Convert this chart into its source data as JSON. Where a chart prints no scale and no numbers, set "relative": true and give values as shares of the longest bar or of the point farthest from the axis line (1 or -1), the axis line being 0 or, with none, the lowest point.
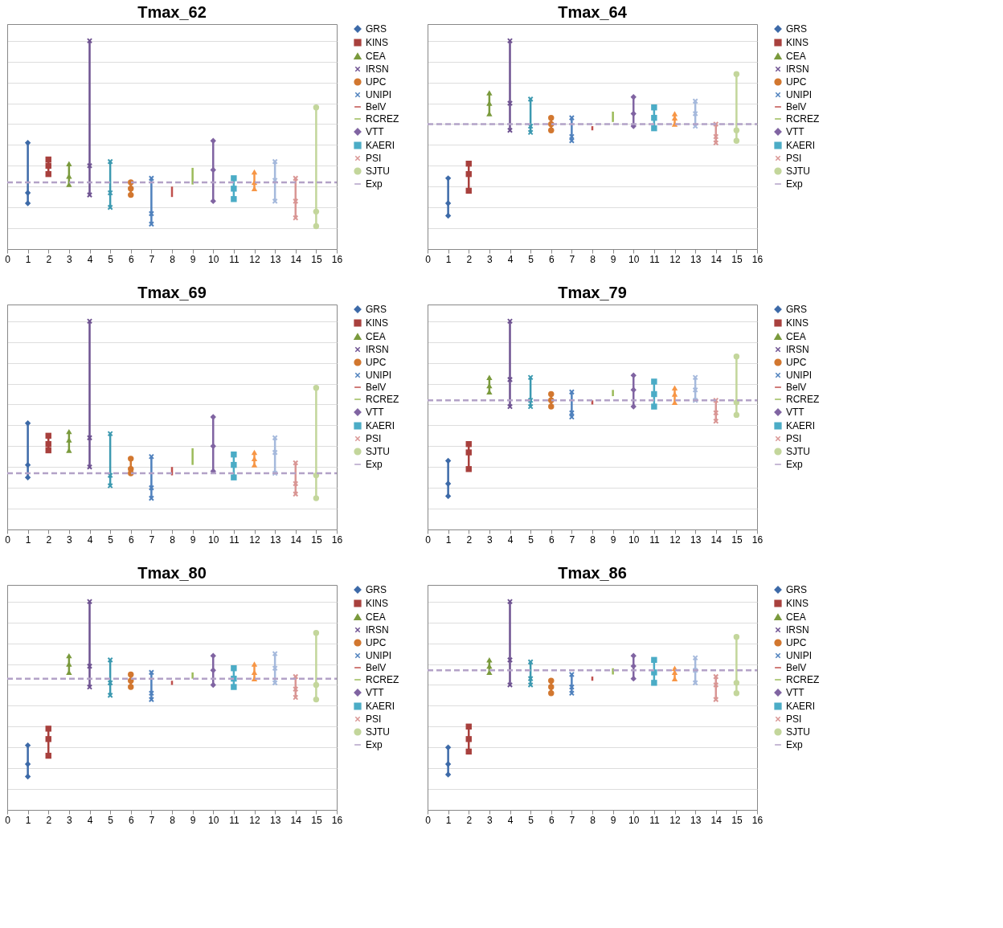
{
  "chart_data": [
    {
      "type": "line",
      "title": "Tmax_62",
      "relative": true,
      "xlim": [
        0,
        16
      ],
      "xticks": [
        0,
        1,
        2,
        3,
        4,
        5,
        6,
        7,
        8,
        9,
        10,
        11,
        12,
        13,
        14,
        15,
        16
      ],
      "grid": "y",
      "legend": "right",
      "series": [
        {
          "name": "GRS",
          "color": "#3d6aa8",
          "marker": "diamond",
          "x": [
            1,
            1,
            1
          ],
          "values": [
            0.51,
            0.27,
            0.22
          ]
        },
        {
          "name": "KINS",
          "color": "#a8403d",
          "marker": "square",
          "x": [
            2,
            2,
            2
          ],
          "values": [
            0.43,
            0.4,
            0.36
          ]
        },
        {
          "name": "CEA",
          "color": "#7a9a3c",
          "marker": "triangle",
          "x": [
            3,
            3,
            3
          ],
          "values": [
            0.41,
            0.35,
            0.31
          ]
        },
        {
          "name": "IRSN",
          "color": "#6e5291",
          "marker": "cross",
          "x": [
            4,
            4,
            4
          ],
          "values": [
            1,
            0.4,
            0.26
          ]
        },
        {
          "color": "#3c99b0",
          "marker": "cross",
          "x": [
            5,
            5,
            5
          ],
          "values": [
            0.42,
            0.27,
            0.2
          ]
        },
        {
          "name": "UPC",
          "color": "#d2772f",
          "marker": "circle",
          "x": [
            6,
            6,
            6
          ],
          "values": [
            0.32,
            0.29,
            0.26
          ]
        },
        {
          "name": "UNIPI",
          "color": "#4f81bd",
          "marker": "cross",
          "x": [
            7,
            7,
            7
          ],
          "values": [
            0.34,
            0.17,
            0.12
          ]
        },
        {
          "name": "BelV",
          "color": "#c0504d",
          "marker": "none",
          "x": [
            8,
            8,
            8
          ],
          "values": [
            0.3,
            0.27,
            0.25
          ]
        },
        {
          "name": "RCREZ",
          "color": "#9bbb59",
          "marker": "none",
          "x": [
            9,
            9,
            9
          ],
          "values": [
            0.39,
            0.35,
            0.31
          ]
        },
        {
          "name": "VTT",
          "color": "#8064a2",
          "marker": "diamond",
          "x": [
            10,
            10,
            10
          ],
          "values": [
            0.52,
            0.38,
            0.23
          ]
        },
        {
          "name": "KAERI",
          "color": "#4bacc6",
          "marker": "square",
          "x": [
            11,
            11,
            11
          ],
          "values": [
            0.34,
            0.29,
            0.24
          ]
        },
        {
          "color": "#f79646",
          "marker": "triangle",
          "x": [
            12,
            12,
            12
          ],
          "values": [
            0.37,
            0.32,
            0.29
          ]
        },
        {
          "color": "#a5b9dc",
          "marker": "cross",
          "x": [
            13,
            13,
            13
          ],
          "values": [
            0.42,
            0.33,
            0.23
          ]
        },
        {
          "name": "PSI",
          "color": "#d99694",
          "marker": "cross",
          "x": [
            14,
            14,
            14
          ],
          "values": [
            0.34,
            0.23,
            0.15
          ]
        },
        {
          "name": "SJTU",
          "color": "#c3d69b",
          "marker": "circle",
          "x": [
            15,
            15,
            15
          ],
          "values": [
            0.68,
            0.18,
            0.11
          ]
        },
        {
          "name": "Exp",
          "color": "#b3a2c7",
          "marker": "none",
          "line_style": "dashed",
          "x": [
            0,
            16
          ],
          "values": [
            0.32,
            0.32
          ]
        }
      ]
    },
    {
      "type": "line",
      "title": "Tmax_64",
      "relative": true,
      "xlim": [
        0,
        16
      ],
      "xticks": [
        0,
        1,
        2,
        3,
        4,
        5,
        6,
        7,
        8,
        9,
        10,
        11,
        12,
        13,
        14,
        15,
        16
      ],
      "grid": "y",
      "legend": "right",
      "series": [
        {
          "name": "GRS",
          "color": "#3d6aa8",
          "marker": "diamond",
          "x": [
            1,
            1,
            1
          ],
          "values": [
            0.34,
            0.22,
            0.16
          ]
        },
        {
          "name": "KINS",
          "color": "#a8403d",
          "marker": "square",
          "x": [
            2,
            2,
            2
          ],
          "values": [
            0.41,
            0.36,
            0.28
          ]
        },
        {
          "name": "CEA",
          "color": "#7a9a3c",
          "marker": "triangle",
          "x": [
            3,
            3,
            3
          ],
          "values": [
            0.75,
            0.7,
            0.65
          ]
        },
        {
          "name": "IRSN",
          "color": "#6e5291",
          "marker": "cross",
          "x": [
            4,
            4,
            4
          ],
          "values": [
            1,
            0.7,
            0.57
          ]
        },
        {
          "color": "#3c99b0",
          "marker": "cross",
          "x": [
            5,
            5,
            5
          ],
          "values": [
            0.72,
            0.59,
            0.56
          ]
        },
        {
          "name": "UPC",
          "color": "#d2772f",
          "marker": "circle",
          "x": [
            6,
            6,
            6
          ],
          "values": [
            0.63,
            0.6,
            0.57
          ]
        },
        {
          "name": "UNIPI",
          "color": "#4f81bd",
          "marker": "cross",
          "x": [
            7,
            7,
            7
          ],
          "values": [
            0.63,
            0.54,
            0.52
          ]
        },
        {
          "name": "BelV",
          "color": "#c0504d",
          "marker": "none",
          "x": [
            8,
            8,
            8
          ],
          "values": [
            0.59,
            0.58,
            0.57
          ]
        },
        {
          "name": "RCREZ",
          "color": "#9bbb59",
          "marker": "none",
          "x": [
            9,
            9,
            9
          ],
          "values": [
            0.66,
            0.63,
            0.61
          ]
        },
        {
          "name": "VTT",
          "color": "#8064a2",
          "marker": "diamond",
          "x": [
            10,
            10,
            10
          ],
          "values": [
            0.73,
            0.65,
            0.59
          ]
        },
        {
          "name": "KAERI",
          "color": "#4bacc6",
          "marker": "square",
          "x": [
            11,
            11,
            11
          ],
          "values": [
            0.68,
            0.63,
            0.58
          ]
        },
        {
          "color": "#f79646",
          "marker": "triangle",
          "x": [
            12,
            12,
            12
          ],
          "values": [
            0.65,
            0.63,
            0.6
          ]
        },
        {
          "color": "#a5b9dc",
          "marker": "cross",
          "x": [
            13,
            13,
            13
          ],
          "values": [
            0.71,
            0.65,
            0.59
          ]
        },
        {
          "name": "PSI",
          "color": "#d99694",
          "marker": "cross",
          "x": [
            14,
            14,
            14
          ],
          "values": [
            0.6,
            0.54,
            0.51
          ]
        },
        {
          "name": "SJTU",
          "color": "#c3d69b",
          "marker": "circle",
          "x": [
            15,
            15,
            15
          ],
          "values": [
            0.84,
            0.57,
            0.52
          ]
        },
        {
          "name": "Exp",
          "color": "#b3a2c7",
          "marker": "none",
          "line_style": "dashed",
          "x": [
            0,
            16
          ],
          "values": [
            0.6,
            0.6
          ]
        }
      ]
    },
    {
      "type": "line",
      "title": "Tmax_69",
      "relative": true,
      "xlim": [
        0,
        16
      ],
      "xticks": [
        0,
        1,
        2,
        3,
        4,
        5,
        6,
        7,
        8,
        9,
        10,
        11,
        12,
        13,
        14,
        15,
        16
      ],
      "grid": "y",
      "legend": "right",
      "series": [
        {
          "name": "GRS",
          "color": "#3d6aa8",
          "marker": "diamond",
          "x": [
            1,
            1,
            1
          ],
          "values": [
            0.51,
            0.31,
            0.25
          ]
        },
        {
          "name": "KINS",
          "color": "#a8403d",
          "marker": "square",
          "x": [
            2,
            2,
            2
          ],
          "values": [
            0.45,
            0.41,
            0.38
          ]
        },
        {
          "name": "CEA",
          "color": "#7a9a3c",
          "marker": "triangle",
          "x": [
            3,
            3,
            3
          ],
          "values": [
            0.47,
            0.43,
            0.38
          ]
        },
        {
          "name": "IRSN",
          "color": "#6e5291",
          "marker": "cross",
          "x": [
            4,
            4,
            4
          ],
          "values": [
            1,
            0.44,
            0.3
          ]
        },
        {
          "color": "#3c99b0",
          "marker": "cross",
          "x": [
            5,
            5,
            5
          ],
          "values": [
            0.46,
            0.26,
            0.21
          ]
        },
        {
          "name": "UPC",
          "color": "#d2772f",
          "marker": "circle",
          "x": [
            6,
            6,
            6
          ],
          "values": [
            0.34,
            0.29,
            0.27
          ]
        },
        {
          "name": "UNIPI",
          "color": "#4f81bd",
          "marker": "cross",
          "x": [
            7,
            7,
            7
          ],
          "values": [
            0.35,
            0.2,
            0.15
          ]
        },
        {
          "name": "BelV",
          "color": "#c0504d",
          "marker": "none",
          "x": [
            8,
            8,
            8
          ],
          "values": [
            0.3,
            0.28,
            0.26
          ]
        },
        {
          "name": "RCREZ",
          "color": "#9bbb59",
          "marker": "none",
          "x": [
            9,
            9,
            9
          ],
          "values": [
            0.39,
            0.35,
            0.31
          ]
        },
        {
          "name": "VTT",
          "color": "#8064a2",
          "marker": "diamond",
          "x": [
            10,
            10,
            10
          ],
          "values": [
            0.54,
            0.4,
            0.28
          ]
        },
        {
          "name": "KAERI",
          "color": "#4bacc6",
          "marker": "square",
          "x": [
            11,
            11,
            11
          ],
          "values": [
            0.36,
            0.31,
            0.25
          ]
        },
        {
          "color": "#f79646",
          "marker": "triangle",
          "x": [
            12,
            12,
            12
          ],
          "values": [
            0.37,
            0.34,
            0.31
          ]
        },
        {
          "color": "#a5b9dc",
          "marker": "cross",
          "x": [
            13,
            13,
            13
          ],
          "values": [
            0.44,
            0.37,
            0.27
          ]
        },
        {
          "name": "PSI",
          "color": "#d99694",
          "marker": "cross",
          "x": [
            14,
            14,
            14
          ],
          "values": [
            0.32,
            0.22,
            0.17
          ]
        },
        {
          "name": "SJTU",
          "color": "#c3d69b",
          "marker": "circle",
          "x": [
            15,
            15,
            15
          ],
          "values": [
            0.68,
            0.26,
            0.15
          ]
        },
        {
          "name": "Exp",
          "color": "#b3a2c7",
          "marker": "none",
          "line_style": "dashed",
          "x": [
            0,
            16
          ],
          "values": [
            0.27,
            0.27
          ]
        }
      ]
    },
    {
      "type": "line",
      "title": "Tmax_79",
      "relative": true,
      "xlim": [
        0,
        16
      ],
      "xticks": [
        0,
        1,
        2,
        3,
        4,
        5,
        6,
        7,
        8,
        9,
        10,
        11,
        12,
        13,
        14,
        15,
        16
      ],
      "grid": "y",
      "legend": "right",
      "series": [
        {
          "name": "GRS",
          "color": "#3d6aa8",
          "marker": "diamond",
          "x": [
            1,
            1,
            1
          ],
          "values": [
            0.33,
            0.22,
            0.16
          ]
        },
        {
          "name": "KINS",
          "color": "#a8403d",
          "marker": "square",
          "x": [
            2,
            2,
            2
          ],
          "values": [
            0.41,
            0.37,
            0.29
          ]
        },
        {
          "name": "CEA",
          "color": "#7a9a3c",
          "marker": "triangle",
          "x": [
            3,
            3,
            3
          ],
          "values": [
            0.73,
            0.69,
            0.66
          ]
        },
        {
          "name": "IRSN",
          "color": "#6e5291",
          "marker": "cross",
          "x": [
            4,
            4,
            4
          ],
          "values": [
            1,
            0.72,
            0.59
          ]
        },
        {
          "color": "#3c99b0",
          "marker": "cross",
          "x": [
            5,
            5,
            5
          ],
          "values": [
            0.73,
            0.62,
            0.59
          ]
        },
        {
          "name": "UPC",
          "color": "#d2772f",
          "marker": "circle",
          "x": [
            6,
            6,
            6
          ],
          "values": [
            0.65,
            0.62,
            0.59
          ]
        },
        {
          "name": "UNIPI",
          "color": "#4f81bd",
          "marker": "cross",
          "x": [
            7,
            7,
            7
          ],
          "values": [
            0.66,
            0.56,
            0.54
          ]
        },
        {
          "name": "BelV",
          "color": "#c0504d",
          "marker": "none",
          "x": [
            8,
            8,
            8
          ],
          "values": [
            0.62,
            0.61,
            0.6
          ]
        },
        {
          "name": "RCREZ",
          "color": "#9bbb59",
          "marker": "none",
          "x": [
            9,
            9,
            9
          ],
          "values": [
            0.67,
            0.65,
            0.64
          ]
        },
        {
          "name": "VTT",
          "color": "#8064a2",
          "marker": "diamond",
          "x": [
            10,
            10,
            10
          ],
          "values": [
            0.74,
            0.67,
            0.59
          ]
        },
        {
          "name": "KAERI",
          "color": "#4bacc6",
          "marker": "square",
          "x": [
            11,
            11,
            11
          ],
          "values": [
            0.71,
            0.65,
            0.59
          ]
        },
        {
          "color": "#f79646",
          "marker": "triangle",
          "x": [
            12,
            12,
            12
          ],
          "values": [
            0.68,
            0.65,
            0.61
          ]
        },
        {
          "color": "#a5b9dc",
          "marker": "cross",
          "x": [
            13,
            13,
            13
          ],
          "values": [
            0.73,
            0.67,
            0.62
          ]
        },
        {
          "name": "PSI",
          "color": "#d99694",
          "marker": "cross",
          "x": [
            14,
            14,
            14
          ],
          "values": [
            0.62,
            0.56,
            0.52
          ]
        },
        {
          "name": "SJTU",
          "color": "#c3d69b",
          "marker": "circle",
          "x": [
            15,
            15,
            15
          ],
          "values": [
            0.83,
            0.61,
            0.55
          ]
        },
        {
          "name": "Exp",
          "color": "#b3a2c7",
          "marker": "none",
          "line_style": "dashed",
          "x": [
            0,
            16
          ],
          "values": [
            0.62,
            0.62
          ]
        }
      ]
    },
    {
      "type": "line",
      "title": "Tmax_80",
      "relative": true,
      "xlim": [
        0,
        16
      ],
      "xticks": [
        0,
        1,
        2,
        3,
        4,
        5,
        6,
        7,
        8,
        9,
        10,
        11,
        12,
        13,
        14,
        15,
        16
      ],
      "grid": "y",
      "legend": "right",
      "series": [
        {
          "name": "GRS",
          "color": "#3d6aa8",
          "marker": "diamond",
          "x": [
            1,
            1,
            1
          ],
          "values": [
            0.31,
            0.22,
            0.16
          ]
        },
        {
          "name": "KINS",
          "color": "#a8403d",
          "marker": "square",
          "x": [
            2,
            2,
            2
          ],
          "values": [
            0.39,
            0.34,
            0.26
          ]
        },
        {
          "name": "CEA",
          "color": "#7a9a3c",
          "marker": "triangle",
          "x": [
            3,
            3,
            3
          ],
          "values": [
            0.74,
            0.7,
            0.66
          ]
        },
        {
          "name": "IRSN",
          "color": "#6e5291",
          "marker": "cross",
          "x": [
            4,
            4,
            4
          ],
          "values": [
            1,
            0.69,
            0.59
          ]
        },
        {
          "color": "#3c99b0",
          "marker": "cross",
          "x": [
            5,
            5,
            5
          ],
          "values": [
            0.72,
            0.61,
            0.55
          ]
        },
        {
          "name": "UPC",
          "color": "#d2772f",
          "marker": "circle",
          "x": [
            6,
            6,
            6
          ],
          "values": [
            0.65,
            0.62,
            0.59
          ]
        },
        {
          "name": "UNIPI",
          "color": "#4f81bd",
          "marker": "cross",
          "x": [
            7,
            7,
            7
          ],
          "values": [
            0.66,
            0.56,
            0.53
          ]
        },
        {
          "name": "BelV",
          "color": "#c0504d",
          "marker": "none",
          "x": [
            8,
            8,
            8
          ],
          "values": [
            0.62,
            0.61,
            0.6
          ]
        },
        {
          "name": "RCREZ",
          "color": "#9bbb59",
          "marker": "none",
          "x": [
            9,
            9,
            9
          ],
          "values": [
            0.66,
            0.64,
            0.63
          ]
        },
        {
          "name": "VTT",
          "color": "#8064a2",
          "marker": "diamond",
          "x": [
            10,
            10,
            10
          ],
          "values": [
            0.74,
            0.67,
            0.6
          ]
        },
        {
          "name": "KAERI",
          "color": "#4bacc6",
          "marker": "square",
          "x": [
            11,
            11,
            11
          ],
          "values": [
            0.68,
            0.63,
            0.59
          ]
        },
        {
          "color": "#f79646",
          "marker": "triangle",
          "x": [
            12,
            12,
            12
          ],
          "values": [
            0.7,
            0.66,
            0.63
          ]
        },
        {
          "color": "#a5b9dc",
          "marker": "cross",
          "x": [
            13,
            13,
            13
          ],
          "values": [
            0.75,
            0.68,
            0.61
          ]
        },
        {
          "name": "PSI",
          "color": "#d99694",
          "marker": "cross",
          "x": [
            14,
            14,
            14
          ],
          "values": [
            0.64,
            0.58,
            0.54
          ]
        },
        {
          "name": "SJTU",
          "color": "#c3d69b",
          "marker": "circle",
          "x": [
            15,
            15,
            15
          ],
          "values": [
            0.85,
            0.6,
            0.53
          ]
        },
        {
          "name": "Exp",
          "color": "#b3a2c7",
          "marker": "none",
          "line_style": "dashed",
          "x": [
            0,
            16
          ],
          "values": [
            0.63,
            0.63
          ]
        }
      ]
    },
    {
      "type": "line",
      "title": "Tmax_86",
      "relative": true,
      "xlim": [
        0,
        16
      ],
      "xticks": [
        0,
        1,
        2,
        3,
        4,
        5,
        6,
        7,
        8,
        9,
        10,
        11,
        12,
        13,
        14,
        15,
        16
      ],
      "grid": "y",
      "legend": "right",
      "series": [
        {
          "name": "GRS",
          "color": "#3d6aa8",
          "marker": "diamond",
          "x": [
            1,
            1,
            1
          ],
          "values": [
            0.3,
            0.22,
            0.17
          ]
        },
        {
          "name": "KINS",
          "color": "#a8403d",
          "marker": "square",
          "x": [
            2,
            2,
            2
          ],
          "values": [
            0.4,
            0.34,
            0.28
          ]
        },
        {
          "name": "CEA",
          "color": "#7a9a3c",
          "marker": "triangle",
          "x": [
            3,
            3,
            3
          ],
          "values": [
            0.72,
            0.69,
            0.66
          ]
        },
        {
          "name": "IRSN",
          "color": "#6e5291",
          "marker": "cross",
          "x": [
            4,
            4,
            4
          ],
          "values": [
            1,
            0.72,
            0.6
          ]
        },
        {
          "color": "#3c99b0",
          "marker": "cross",
          "x": [
            5,
            5,
            5
          ],
          "values": [
            0.71,
            0.63,
            0.6
          ]
        },
        {
          "name": "UPC",
          "color": "#d2772f",
          "marker": "circle",
          "x": [
            6,
            6,
            6
          ],
          "values": [
            0.62,
            0.59,
            0.56
          ]
        },
        {
          "name": "UNIPI",
          "color": "#4f81bd",
          "marker": "cross",
          "x": [
            7,
            7,
            7
          ],
          "values": [
            0.65,
            0.59,
            0.56
          ]
        },
        {
          "name": "BelV",
          "color": "#c0504d",
          "marker": "none",
          "x": [
            8,
            8,
            8
          ],
          "values": [
            0.64,
            0.63,
            0.62
          ]
        },
        {
          "name": "RCREZ",
          "color": "#9bbb59",
          "marker": "none",
          "x": [
            9,
            9,
            9
          ],
          "values": [
            0.68,
            0.66,
            0.65
          ]
        },
        {
          "name": "VTT",
          "color": "#8064a2",
          "marker": "diamond",
          "x": [
            10,
            10,
            10
          ],
          "values": [
            0.74,
            0.69,
            0.63
          ]
        },
        {
          "name": "KAERI",
          "color": "#4bacc6",
          "marker": "square",
          "x": [
            11,
            11,
            11
          ],
          "values": [
            0.72,
            0.66,
            0.61
          ]
        },
        {
          "color": "#f79646",
          "marker": "triangle",
          "x": [
            12,
            12,
            12
          ],
          "values": [
            0.68,
            0.66,
            0.63
          ]
        },
        {
          "color": "#a5b9dc",
          "marker": "cross",
          "x": [
            13,
            13,
            13
          ],
          "values": [
            0.73,
            0.67,
            0.61
          ]
        },
        {
          "name": "PSI",
          "color": "#d99694",
          "marker": "cross",
          "x": [
            14,
            14,
            14
          ],
          "values": [
            0.64,
            0.6,
            0.53
          ]
        },
        {
          "name": "SJTU",
          "color": "#c3d69b",
          "marker": "circle",
          "x": [
            15,
            15,
            15
          ],
          "values": [
            0.83,
            0.61,
            0.56
          ]
        },
        {
          "name": "Exp",
          "color": "#b3a2c7",
          "marker": "none",
          "line_style": "dashed",
          "x": [
            0,
            16
          ],
          "values": [
            0.67,
            0.67
          ]
        }
      ]
    }
  ]
}
